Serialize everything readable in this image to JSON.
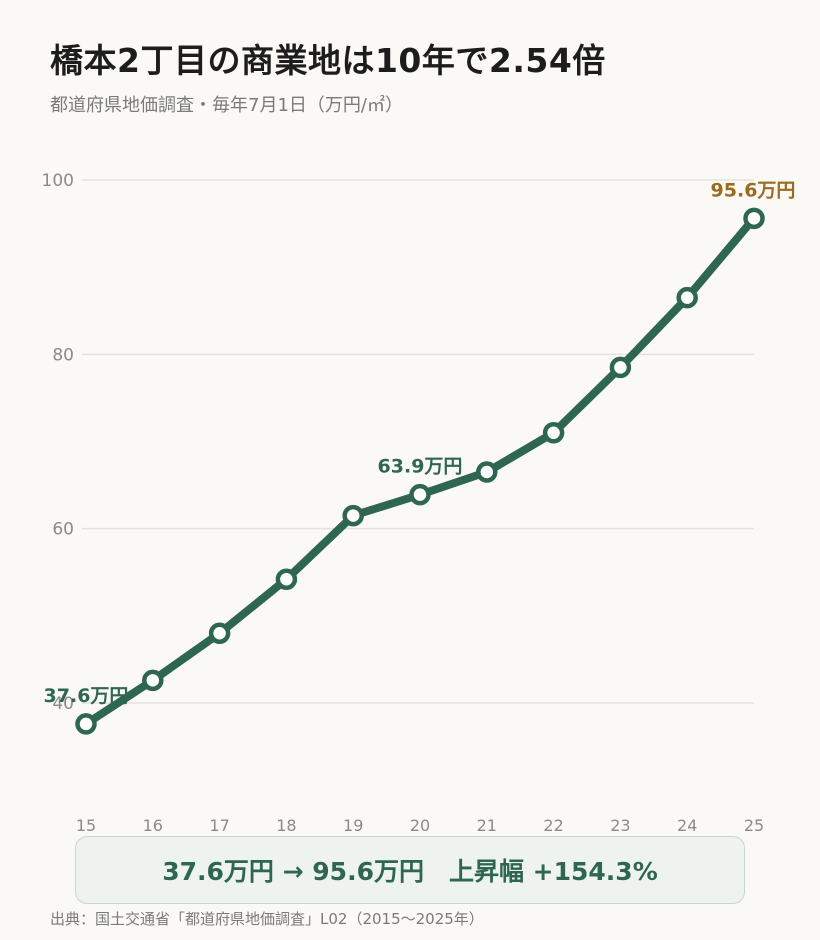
{
  "title": "橋本2丁目の商業地は10年で2.54倍",
  "subtitle": "都道府県地価調査・毎年7月1日（万円/㎡）",
  "colors": {
    "line": "#2f6650",
    "accent": "#9a6a1f",
    "grid": "#e4e2dd",
    "marker_fill": "#ffffff"
  },
  "chart_data": {
    "type": "line",
    "categories": [
      "15",
      "16",
      "17",
      "18",
      "19",
      "20",
      "21",
      "22",
      "23",
      "24",
      "25"
    ],
    "series": [
      {
        "values": [
          37.6,
          42.6,
          48.0,
          54.2,
          61.5,
          63.9,
          66.5,
          71.0,
          78.5,
          86.5,
          95.6
        ]
      }
    ],
    "ylim": [
      30,
      100
    ],
    "yticks": [
      40,
      60,
      80,
      100
    ],
    "grid": true,
    "annotations": [
      {
        "index": 0,
        "text": "37.6万円",
        "color": "line"
      },
      {
        "index": 5,
        "text": "63.9万円",
        "color": "line"
      },
      {
        "index": 10,
        "text": "95.6万円",
        "color": "accent"
      }
    ]
  },
  "summary": "37.6万円 → 95.6万円　上昇幅 +154.3%",
  "source": "出典：国土交通省「都道府県地価調査」L02（2015〜2025年）"
}
